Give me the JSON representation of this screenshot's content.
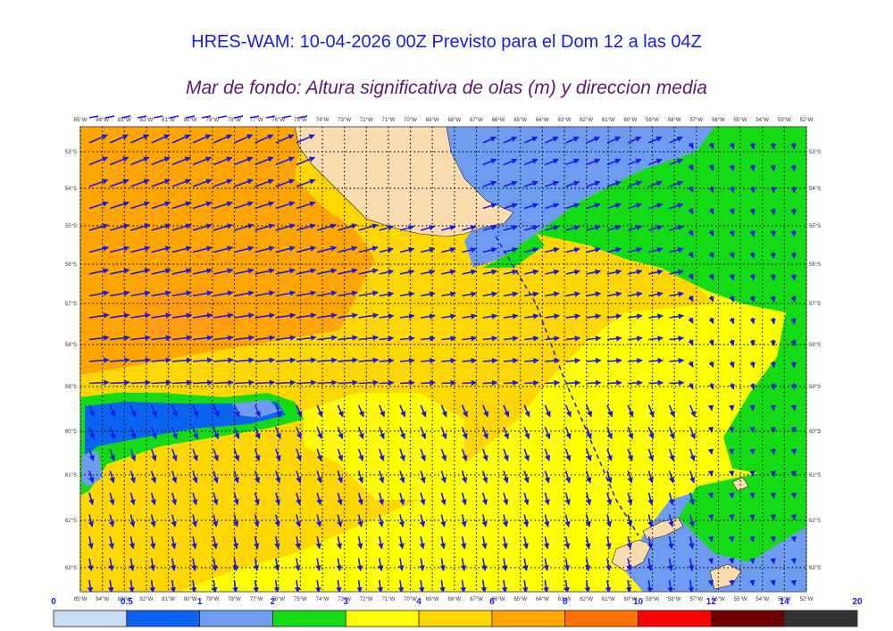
{
  "header": {
    "title": "HRES-WAM: 10-04-2026 00Z Previsto para el Dom 12 a las 04Z",
    "subtitle": "Mar de fondo: Altura significativa de olas (m) y direccion media"
  },
  "map": {
    "lon_labels": [
      "85°W",
      "84°W",
      "83°W",
      "82°W",
      "81°W",
      "80°W",
      "79°W",
      "78°W",
      "77°W",
      "76°W",
      "75°W",
      "74°W",
      "73°W",
      "72°W",
      "71°W",
      "70°W",
      "69°W",
      "68°W",
      "67°W",
      "66°W",
      "65°W",
      "64°W",
      "63°W",
      "62°W",
      "61°W",
      "60°W",
      "59°W",
      "58°W",
      "57°W",
      "56°W",
      "55°W",
      "54°W",
      "53°W",
      "52°W"
    ],
    "lat_labels": [
      "53°S",
      "54°S",
      "55°S",
      "56°S",
      "57°S",
      "58°S",
      "59°S",
      "60°S",
      "61°S",
      "62°S",
      "63°S"
    ],
    "arrow_color": "#1a1ae6",
    "land_color": "#fbdcae"
  },
  "legend": {
    "ticks": [
      "0",
      "0.5",
      "1",
      "2",
      "3",
      "4",
      "6",
      "8",
      "10",
      "12",
      "14",
      "20"
    ],
    "colors": [
      "#c9ddf5",
      "#0a64f0",
      "#6e9cf0",
      "#14dc14",
      "#ffff00",
      "#ffd700",
      "#ffa500",
      "#ff7000",
      "#ff0000",
      "#6e0000",
      "#333333"
    ]
  }
}
